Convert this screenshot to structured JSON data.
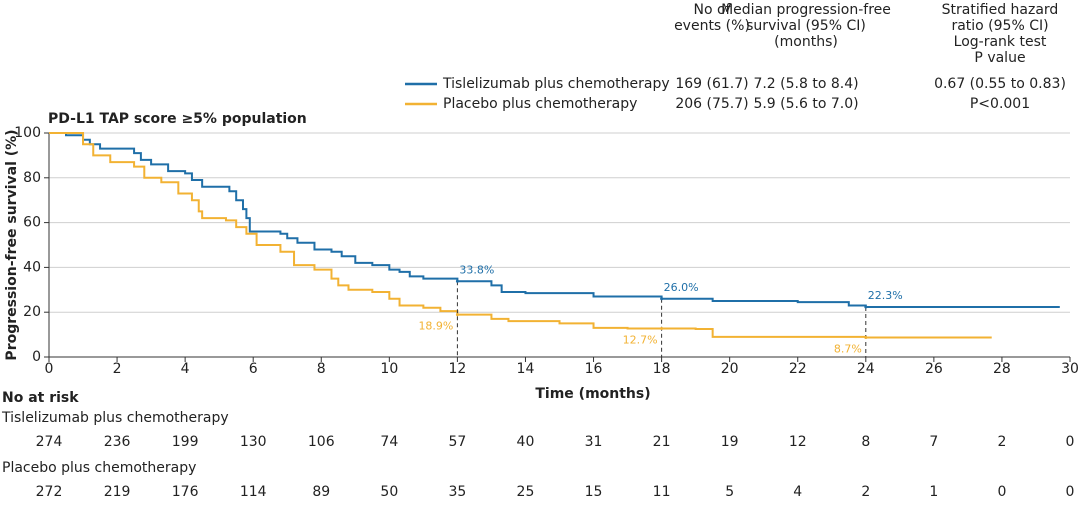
{
  "chart_data": {
    "type": "step",
    "title": "PD-L1 TAP score ≥5% population",
    "y_label": "Progression-free survival (%)",
    "x_label": "Time (months)",
    "xlim": [
      0,
      30
    ],
    "xticks": [
      0,
      2,
      4,
      6,
      8,
      10,
      12,
      14,
      16,
      18,
      20,
      22,
      24,
      26,
      28,
      30
    ],
    "ylim": [
      0,
      100
    ],
    "yticks": [
      0,
      20,
      40,
      60,
      80,
      100
    ],
    "grid": true,
    "legend_table": {
      "headers": [
        [
          "No of",
          "events (%)"
        ],
        [
          "Median progression-free",
          "survival (95% CI)",
          "(months)"
        ],
        [
          "Stratified hazard",
          "ratio (95% CI)",
          "Log-rank test",
          "P value"
        ]
      ],
      "rows": [
        [
          "169 (61.7)",
          "7.2 (5.8 to 8.4)",
          "0.67 (0.55 to 0.83)"
        ],
        [
          "206 (75.7)",
          "5.9 (5.6 to 7.0)",
          "P<0.001"
        ]
      ]
    },
    "series": [
      {
        "name": "Tislelizumab plus chemotherapy",
        "color": "#1f6fa8",
        "x": [
          0,
          0.5,
          1,
          1.2,
          1.5,
          2.5,
          2.7,
          3,
          3.5,
          4,
          4.2,
          4.5,
          5.3,
          5.5,
          5.7,
          5.8,
          5.9,
          6.8,
          7,
          7.3,
          7.8,
          8.3,
          8.6,
          9,
          9.5,
          10,
          10.3,
          10.6,
          11,
          12,
          13,
          13.3,
          14,
          16,
          18,
          19.5,
          22,
          23.5,
          24,
          29.7
        ],
        "values": [
          100,
          99,
          97,
          95,
          93,
          91,
          88,
          86,
          83,
          82,
          79,
          76,
          74,
          70,
          66,
          62,
          56,
          55,
          53,
          51,
          48,
          47,
          45,
          42,
          41,
          39,
          38,
          36,
          35,
          33.8,
          32,
          29,
          28.5,
          27,
          26,
          25,
          24.5,
          23,
          22.3,
          22.3
        ],
        "landmark_x": [
          12,
          18,
          24
        ],
        "landmark_values": [
          33.8,
          26.0,
          22.3
        ],
        "landmark_labels": [
          "33.8%",
          "26.0%",
          "22.3%"
        ],
        "at_risk": [
          274,
          236,
          199,
          130,
          106,
          74,
          57,
          40,
          31,
          21,
          19,
          12,
          8,
          7,
          2,
          0
        ]
      },
      {
        "name": "Placebo plus chemotherapy",
        "color": "#f2b233",
        "x": [
          0,
          1,
          1.3,
          1.8,
          2.5,
          2.8,
          3.3,
          3.8,
          4.2,
          4.4,
          4.5,
          5.2,
          5.5,
          5.8,
          6.1,
          6.8,
          7.2,
          7.8,
          8.3,
          8.5,
          8.8,
          9.5,
          10,
          10.3,
          11,
          11.5,
          12,
          13,
          13.5,
          15,
          16,
          17,
          18,
          19,
          19.5,
          24,
          27.7
        ],
        "values": [
          100,
          95,
          90,
          87,
          85,
          80,
          78,
          73,
          70,
          65,
          62,
          61,
          58,
          55,
          50,
          47,
          41,
          39,
          35,
          32,
          30,
          29,
          26,
          23,
          22,
          20.5,
          18.9,
          17,
          16,
          15,
          13,
          12.7,
          12.7,
          12.5,
          9,
          8.7,
          8.7
        ],
        "landmark_x": [
          12,
          18,
          24
        ],
        "landmark_values": [
          18.9,
          12.7,
          8.7
        ],
        "landmark_labels": [
          "18.9%",
          "12.7%",
          "8.7%"
        ],
        "at_risk": [
          272,
          219,
          176,
          114,
          89,
          50,
          35,
          25,
          15,
          11,
          5,
          4,
          2,
          1,
          0,
          0
        ]
      }
    ],
    "at_risk_title": "No at risk"
  }
}
